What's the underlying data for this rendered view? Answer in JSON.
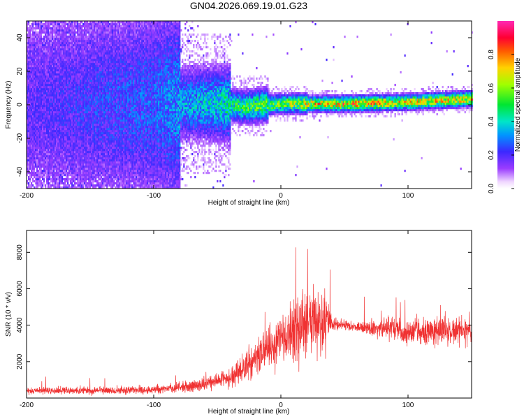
{
  "title": "GN04.2026.069.19.01.G23",
  "chart_data": [
    {
      "type": "heatmap",
      "xlabel": "Height of straight line (km)",
      "ylabel": "Frequency (Hz)",
      "xlim": [
        -200,
        150
      ],
      "ylim": [
        -50,
        50
      ],
      "xticks": [
        -200,
        -100,
        0,
        100
      ],
      "yticks": [
        -40,
        -20,
        0,
        20,
        40
      ],
      "colorbar": {
        "label": "Normalized spectral amplitude",
        "range": [
          0,
          1
        ],
        "ticks": [
          "0.0",
          "0.2",
          "0.4",
          "0.6",
          "0.8"
        ]
      },
      "ridge": {
        "description_points_x": [
          -200,
          -100,
          -50,
          -30,
          0,
          50,
          100,
          150
        ],
        "center_hz": [
          0,
          0,
          0,
          -2,
          0,
          0,
          1,
          3
        ],
        "amplitude": [
          0.2,
          0.3,
          0.45,
          0.55,
          0.65,
          0.85,
          0.75,
          0.8
        ]
      }
    },
    {
      "type": "line",
      "xlabel": "Height of straight line (km)",
      "ylabel": "SNR (10 * v/v)",
      "xlim": [
        -200,
        150
      ],
      "ylim": [
        0,
        9200
      ],
      "xticks": [
        -200,
        -100,
        0,
        100
      ],
      "yticks": [
        2000,
        4000,
        6000,
        8000
      ],
      "color": "#f03232",
      "envelope": {
        "x": [
          -200,
          -150,
          -100,
          -80,
          -60,
          -40,
          -30,
          -20,
          -10,
          0,
          10,
          20,
          30,
          35,
          40,
          50,
          60,
          70,
          80,
          90,
          100,
          110,
          120,
          130,
          140,
          150
        ],
        "mean": [
          400,
          400,
          450,
          600,
          800,
          1100,
          1600,
          2200,
          2800,
          3200,
          3600,
          4000,
          4300,
          4500,
          4000,
          4000,
          3900,
          3900,
          3900,
          3800,
          3700,
          3700,
          3700,
          3600,
          3700,
          3700
        ],
        "amp": [
          350,
          350,
          400,
          500,
          700,
          900,
          1300,
          1700,
          2200,
          2600,
          3000,
          3400,
          3600,
          3800,
          600,
          500,
          500,
          800,
          1100,
          1200,
          1200,
          1300,
          1300,
          1400,
          1300,
          1300
        ]
      }
    }
  ]
}
